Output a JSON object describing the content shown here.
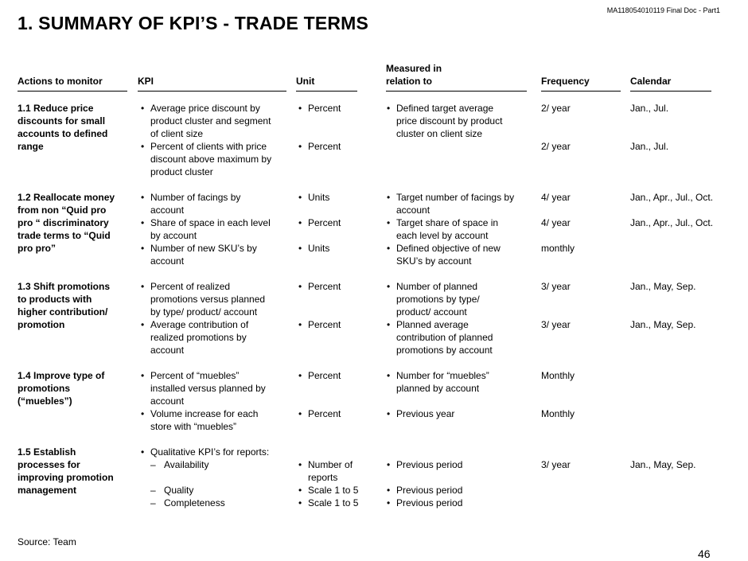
{
  "doc_id": "MA118054010119 Final Doc - Part1",
  "title": "1. SUMMARY OF KPI’S - TRADE TERMS",
  "headers": {
    "actions": "Actions to monitor",
    "kpi": "KPI",
    "unit": "Unit",
    "measured_1": "Measured in",
    "measured_2": "relation to",
    "frequency": "Frequency",
    "calendar": "Calendar"
  },
  "r1": {
    "action": [
      "1.1 Reduce price",
      "discounts for small",
      "accounts to defined",
      "range"
    ],
    "kpi1": [
      "Average price discount by",
      "product cluster and segment",
      "of client size"
    ],
    "kpi2": [
      "Percent of clients with price",
      "discount above maximum by",
      "product cluster"
    ],
    "unit1": "Percent",
    "unit2": "Percent",
    "rel1": [
      "Defined target average",
      "price discount by product",
      "cluster on client size"
    ],
    "freq1": "2/ year",
    "freq2": "2/ year",
    "cal1": "Jan., Jul.",
    "cal2": "Jan., Jul."
  },
  "r2": {
    "action": [
      "1.2 Reallocate money",
      "from non “Quid pro",
      "pro “ discriminatory",
      "trade terms to “Quid",
      "pro pro”"
    ],
    "kpi1": [
      "Number of facings by",
      "account"
    ],
    "kpi2": [
      "Share of space in each level",
      "by account"
    ],
    "kpi3": [
      "Number of new SKU’s by",
      "account"
    ],
    "unit1": "Units",
    "unit2": "Percent",
    "unit3": "Units",
    "rel1": [
      "Target number of facings by",
      "account"
    ],
    "rel2": [
      "Target share of space in",
      "each level by account"
    ],
    "rel3": [
      "Defined objective of new",
      "SKU’s by account"
    ],
    "freq1": "4/ year",
    "freq2": "4/ year",
    "freq3": "monthly",
    "cal1": "Jan., Apr., Jul., Oct.",
    "cal2": "Jan., Apr., Jul., Oct."
  },
  "r3": {
    "action": [
      "1.3 Shift promotions",
      "to products with",
      "higher contribution/",
      "promotion"
    ],
    "kpi1": [
      "Percent of realized",
      "promotions versus planned",
      "by type/ product/ account"
    ],
    "kpi2": [
      "Average contribution of",
      "realized promotions by",
      "account"
    ],
    "unit1": "Percent",
    "unit2": "Percent",
    "rel1": [
      "Number of planned",
      "promotions by type/",
      "product/ account"
    ],
    "rel2": [
      "Planned average",
      "contribution of planned",
      "promotions by account"
    ],
    "freq1": "3/ year",
    "freq2": "3/ year",
    "cal1": "Jan., May, Sep.",
    "cal2": "Jan., May, Sep."
  },
  "r4": {
    "action": [
      "1.4 Improve type of",
      "promotions",
      "(“muebles”)"
    ],
    "kpi1": [
      "Percent of “muebles”",
      "installed versus planned by",
      "account"
    ],
    "kpi2": [
      "Volume increase for each",
      "store with “muebles”"
    ],
    "unit1": "Percent",
    "unit2": "Percent",
    "rel1": [
      "Number for “muebles”",
      "planned by account"
    ],
    "rel2": "Previous year",
    "freq1": "Monthly",
    "freq2": "Monthly"
  },
  "r5": {
    "action": [
      "1.5 Establish",
      "processes for",
      "improving promotion",
      "management"
    ],
    "kpi_intro": "Qualitative KPI’s for reports:",
    "sub1": "Availability",
    "sub2": "Quality",
    "sub3": "Completeness",
    "unit1": [
      "Number of",
      "reports"
    ],
    "unit2": "Scale 1 to 5",
    "unit3": "Scale 1 to 5",
    "rel1": "Previous period",
    "rel2": "Previous period",
    "rel3": "Previous period",
    "freq1": "3/ year",
    "cal1": "Jan., May, Sep."
  },
  "source": "Source:  Team",
  "page_number": "46"
}
